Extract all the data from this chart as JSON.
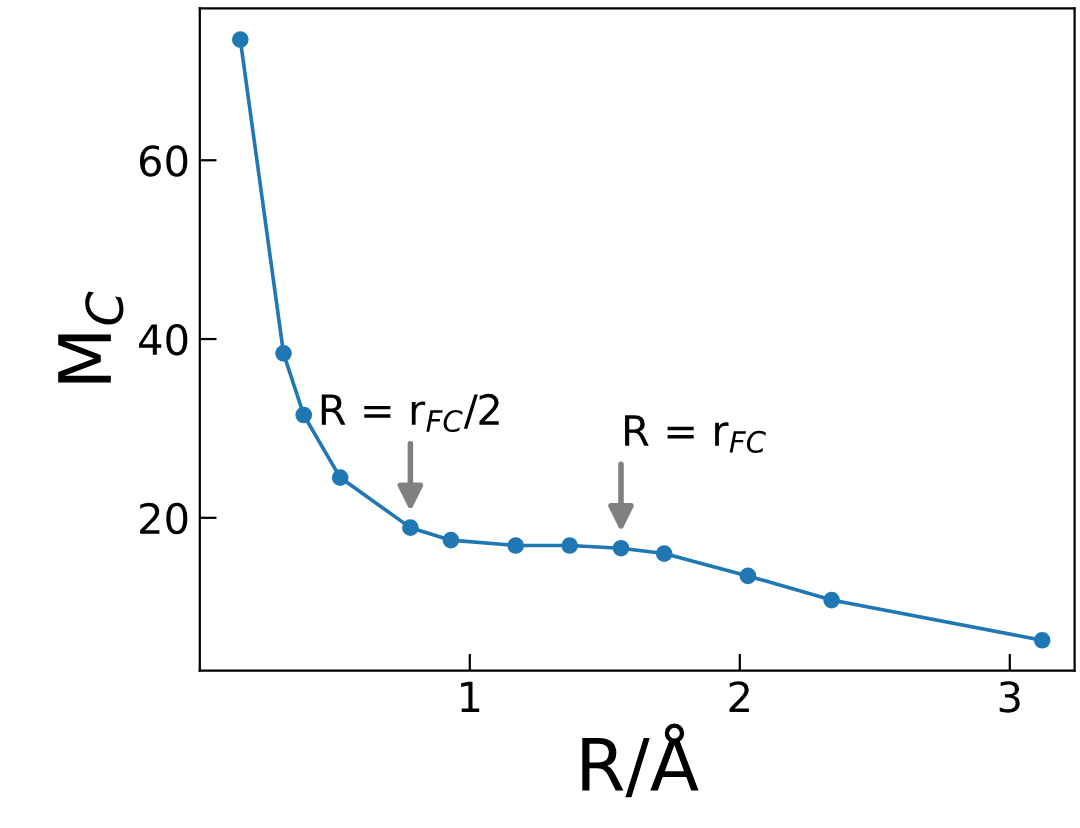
{
  "chart_data": {
    "type": "line",
    "xlabel": "R/Å",
    "ylabel": "M$_{C}$",
    "x": [
      0.15,
      0.31,
      0.385,
      0.52,
      0.78,
      0.93,
      1.17,
      1.37,
      1.56,
      1.72,
      2.03,
      2.34,
      3.12
    ],
    "series": [
      {
        "color": "#1f77b4",
        "values": [
          73.5,
          38.4,
          31.5,
          24.5,
          18.9,
          17.5,
          16.9,
          16.9,
          16.6,
          16.0,
          13.5,
          10.8,
          6.3
        ]
      }
    ],
    "marker": "circle",
    "line_style": "solid",
    "grid": false,
    "legend": false,
    "xlim": [
      0.0,
      3.24
    ],
    "xticks": [
      1,
      2,
      3
    ],
    "ylim": [
      2.9,
      77
    ],
    "yticks": [
      20,
      40,
      60
    ],
    "annotations": [
      {
        "text": "R = r$_{FC}$/2",
        "x": 0.78,
        "y": 18.9
      },
      {
        "text": "R = r$_{FC}$",
        "x": 1.56,
        "y": 16.6
      }
    ]
  }
}
